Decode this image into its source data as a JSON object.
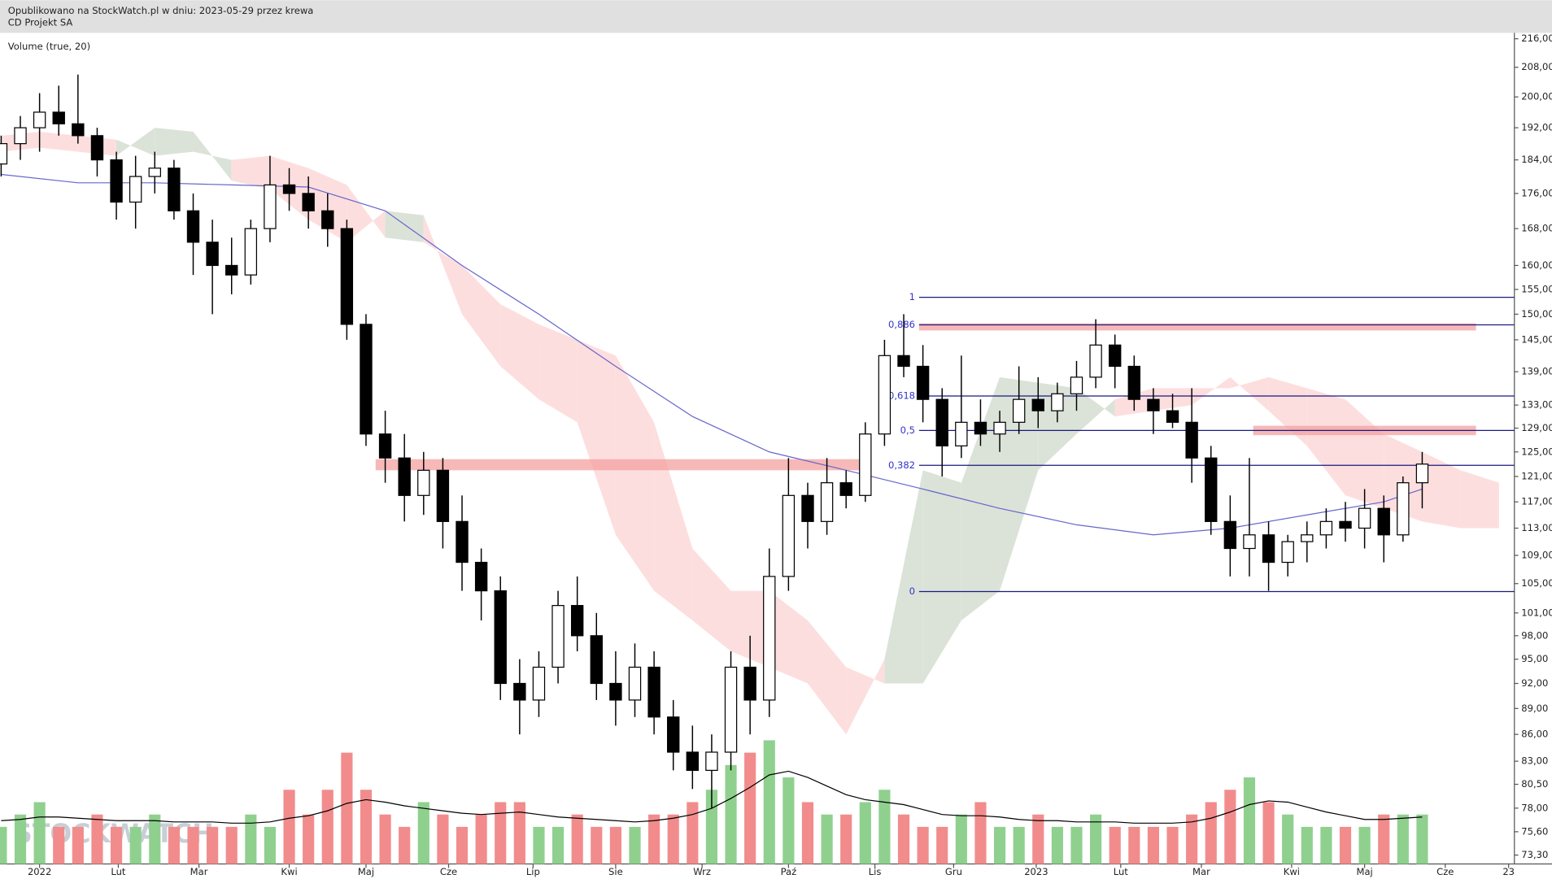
{
  "header": {
    "published": "Opublikowano na StockWatch.pl w dniu: 2023-05-29 przez krewa",
    "instrument": "CD Projekt SA"
  },
  "chart_data": {
    "type": "candlestick",
    "volume_label": "Volume (true, 20)",
    "watermark": "STOCKWATCH",
    "log_scale": true,
    "up_color": "#ffffff",
    "down_color": "#000000",
    "volume_up_color": "#8fd08f",
    "volume_down_color": "#f28c8c",
    "volume_ma_color": "#000000",
    "x": [
      -2,
      -1,
      0,
      1,
      2,
      3,
      4,
      5,
      6,
      7,
      8,
      9,
      10,
      11,
      12,
      13,
      14,
      15,
      16,
      17,
      18,
      19,
      20,
      21,
      22,
      23,
      24,
      25,
      26,
      27,
      28,
      29,
      30,
      31,
      32,
      33,
      34,
      35,
      36,
      37,
      38,
      39,
      40,
      41,
      42,
      43,
      44,
      45,
      46,
      47,
      48,
      49,
      50,
      51,
      52,
      53,
      54,
      55,
      56,
      57,
      58,
      59,
      60,
      61,
      62,
      63,
      64,
      65,
      66,
      67,
      68,
      69,
      70,
      71,
      72
    ],
    "open": [
      183,
      188,
      192,
      196,
      193,
      190,
      184,
      174,
      180,
      182,
      172,
      165,
      160,
      158,
      168,
      178,
      176,
      172,
      168,
      148,
      128,
      124,
      118,
      122,
      114,
      108,
      104,
      92,
      90,
      94,
      102,
      98,
      92,
      90,
      94,
      88,
      84,
      82,
      84,
      94,
      90,
      106,
      118,
      114,
      120,
      118,
      128,
      142,
      140,
      134,
      126,
      130,
      128,
      130,
      134,
      132,
      135,
      138,
      144,
      140,
      134,
      132,
      130,
      124,
      114,
      110,
      112,
      108,
      111,
      112,
      114,
      113,
      116,
      112,
      120
    ],
    "high": [
      190,
      195,
      201,
      203,
      206,
      192,
      186,
      185,
      186,
      184,
      176,
      170,
      166,
      170,
      185,
      182,
      180,
      176,
      170,
      150,
      132,
      128,
      125,
      124,
      118,
      110,
      106,
      95,
      96,
      104,
      106,
      101,
      96,
      97,
      96,
      90,
      87,
      86,
      96,
      98,
      110,
      124,
      120,
      124,
      122,
      130,
      145,
      150,
      144,
      136,
      142,
      134,
      132,
      140,
      138,
      137,
      141,
      149,
      146,
      142,
      136,
      135,
      136,
      126,
      118,
      124,
      114,
      112,
      114,
      116,
      117,
      119,
      118,
      121,
      125
    ],
    "low": [
      180,
      184,
      186,
      190,
      188,
      180,
      170,
      168,
      176,
      170,
      158,
      150,
      154,
      156,
      165,
      172,
      168,
      164,
      145,
      126,
      120,
      114,
      115,
      110,
      104,
      100,
      90,
      86,
      88,
      92,
      96,
      90,
      87,
      88,
      86,
      82,
      80,
      78,
      82,
      86,
      88,
      104,
      110,
      112,
      116,
      117,
      126,
      138,
      130,
      121,
      124,
      126,
      125,
      128,
      129,
      130,
      132,
      136,
      136,
      132,
      128,
      129,
      120,
      112,
      106,
      106,
      104,
      106,
      108,
      110,
      111,
      110,
      108,
      111,
      116
    ],
    "close": [
      188,
      192,
      196,
      193,
      190,
      184,
      174,
      180,
      182,
      172,
      165,
      160,
      158,
      168,
      178,
      176,
      172,
      168,
      148,
      128,
      124,
      118,
      122,
      114,
      108,
      104,
      92,
      90,
      94,
      102,
      98,
      92,
      90,
      94,
      88,
      84,
      82,
      84,
      94,
      90,
      106,
      118,
      114,
      120,
      118,
      128,
      142,
      140,
      134,
      126,
      130,
      128,
      130,
      134,
      132,
      135,
      138,
      144,
      140,
      134,
      132,
      130,
      124,
      114,
      110,
      112,
      108,
      111,
      112,
      114,
      113,
      116,
      112,
      120,
      123
    ],
    "volume": [
      3,
      4,
      5,
      3,
      3,
      4,
      3,
      3,
      4,
      3,
      3,
      3,
      3,
      4,
      3,
      6,
      4,
      6,
      9,
      6,
      4,
      3,
      5,
      4,
      3,
      4,
      5,
      5,
      3,
      3,
      4,
      3,
      3,
      3,
      4,
      4,
      5,
      6,
      8,
      9,
      10,
      7,
      5,
      4,
      4,
      5,
      6,
      4,
      3,
      3,
      4,
      5,
      3,
      3,
      4,
      3,
      3,
      4,
      3,
      3,
      3,
      3,
      4,
      5,
      6,
      7,
      5,
      4,
      3,
      3,
      3,
      3,
      4,
      4,
      4
    ],
    "volume_ma": [
      3.5,
      3.6,
      3.8,
      3.8,
      3.7,
      3.6,
      3.5,
      3.5,
      3.5,
      3.4,
      3.4,
      3.4,
      3.3,
      3.3,
      3.4,
      3.7,
      3.9,
      4.3,
      4.9,
      5.2,
      5.0,
      4.7,
      4.5,
      4.3,
      4.1,
      4.0,
      4.1,
      4.2,
      4.0,
      3.8,
      3.7,
      3.6,
      3.5,
      3.4,
      3.5,
      3.7,
      4.0,
      4.5,
      5.3,
      6.2,
      7.2,
      7.5,
      7.0,
      6.3,
      5.6,
      5.2,
      5.0,
      4.8,
      4.4,
      4.0,
      3.9,
      3.9,
      3.8,
      3.6,
      3.5,
      3.5,
      3.4,
      3.4,
      3.4,
      3.3,
      3.3,
      3.3,
      3.4,
      3.7,
      4.2,
      4.8,
      5.1,
      5.0,
      4.6,
      4.2,
      3.9,
      3.6,
      3.6,
      3.7,
      3.8
    ],
    "sma": {
      "color": "#6666cc",
      "x": [
        -2,
        2,
        6,
        10,
        14,
        18,
        22,
        26,
        30,
        34,
        38,
        42,
        46,
        50,
        54,
        58,
        62,
        66,
        70,
        72
      ],
      "values": [
        180.5,
        178.5,
        178.5,
        178,
        177.5,
        172,
        160,
        150,
        140,
        131,
        125,
        122,
        119,
        116,
        113.5,
        112,
        113,
        115,
        117,
        119
      ]
    },
    "cloud": {
      "up_color": "#dbe3d8",
      "down_color": "#fddede",
      "x": [
        -2,
        0,
        2,
        4,
        6,
        8,
        10,
        12,
        14,
        16,
        18,
        20,
        22,
        24,
        26,
        28,
        30,
        32,
        34,
        36,
        38,
        40,
        42,
        44,
        46,
        48,
        50,
        52,
        54,
        56,
        58,
        60,
        62,
        64,
        66,
        68,
        70,
        72,
        74,
        76
      ],
      "span_a": [
        186,
        187,
        186,
        185,
        192,
        191,
        179,
        177,
        170,
        165,
        172,
        171,
        150,
        140,
        134,
        130,
        112,
        104,
        100,
        96,
        94,
        92,
        86,
        95,
        122,
        120,
        138,
        137,
        136,
        131,
        132,
        133,
        138,
        132,
        126,
        118,
        116,
        114,
        113,
        113
      ],
      "span_b": [
        190,
        191,
        190,
        189,
        185,
        186,
        184,
        185,
        182,
        178,
        166,
        165,
        160,
        152,
        148,
        145,
        142,
        130,
        110,
        104,
        104,
        100,
        94,
        92,
        92,
        100,
        104,
        122,
        128,
        134,
        136,
        136,
        136,
        138,
        136,
        134,
        128,
        125,
        122,
        120
      ]
    },
    "zones": {
      "color": "#f4a0a0",
      "items": [
        {
          "from": 17.5,
          "to": 43.3,
          "low": 122,
          "high": 123.8
        },
        {
          "from": 45.8,
          "to": 74.8,
          "low": 146.8,
          "high": 148.2
        },
        {
          "from": 63.2,
          "to": 74.8,
          "low": 127.8,
          "high": 129.4
        }
      ]
    },
    "fib": {
      "start": 45.8,
      "line_color": "#1a1a80",
      "label_color": "#3333cc",
      "levels": [
        {
          "label": "1",
          "price": 153.4
        },
        {
          "label": "0,886",
          "price": 147.9
        },
        {
          "label": "0,618",
          "price": 134.6
        },
        {
          "label": "0,5",
          "price": 128.6
        },
        {
          "label": "0,382",
          "price": 122.8
        },
        {
          "label": "0",
          "price": 103.9
        }
      ]
    },
    "xlim": [
      -2.06,
      76.8
    ],
    "xticks": [
      {
        "value": 0,
        "label": "2022"
      },
      {
        "value": 4.1,
        "label": "Lut"
      },
      {
        "value": 8.3,
        "label": "Mar"
      },
      {
        "value": 13,
        "label": "Kwi"
      },
      {
        "value": 17,
        "label": "Maj"
      },
      {
        "value": 21.3,
        "label": "Cze"
      },
      {
        "value": 25.7,
        "label": "Lip"
      },
      {
        "value": 30,
        "label": "Sie"
      },
      {
        "value": 34.5,
        "label": "Wrz"
      },
      {
        "value": 39,
        "label": "Paź"
      },
      {
        "value": 43.5,
        "label": "Lis"
      },
      {
        "value": 47.6,
        "label": "Gru"
      },
      {
        "value": 51.9,
        "label": "2023"
      },
      {
        "value": 56.3,
        "label": "Lut"
      },
      {
        "value": 60.5,
        "label": "Mar"
      },
      {
        "value": 65.2,
        "label": "Kwi"
      },
      {
        "value": 69,
        "label": "Maj"
      },
      {
        "value": 73.2,
        "label": "Cze"
      },
      {
        "value": 76.5,
        "label": "23"
      }
    ],
    "ylim": [
      73.3,
      216
    ],
    "yticks": [
      {
        "value": 216,
        "label": "216,00"
      },
      {
        "value": 208,
        "label": "208,00"
      },
      {
        "value": 200,
        "label": "200,00"
      },
      {
        "value": 192,
        "label": "192,00"
      },
      {
        "value": 184,
        "label": "184,00"
      },
      {
        "value": 176,
        "label": "176,00"
      },
      {
        "value": 168,
        "label": "168,00"
      },
      {
        "value": 160,
        "label": "160,00"
      },
      {
        "value": 155,
        "label": "155,00"
      },
      {
        "value": 150,
        "label": "150,00"
      },
      {
        "value": 145,
        "label": "145,00"
      },
      {
        "value": 139,
        "label": "139,00"
      },
      {
        "value": 133,
        "label": "133,00"
      },
      {
        "value": 129,
        "label": "129,00"
      },
      {
        "value": 125,
        "label": "125,00"
      },
      {
        "value": 121,
        "label": "121,00"
      },
      {
        "value": 117,
        "label": "117,00"
      },
      {
        "value": 113,
        "label": "113,00"
      },
      {
        "value": 109,
        "label": "109,00"
      },
      {
        "value": 105,
        "label": "105,00"
      },
      {
        "value": 101,
        "label": "101,00"
      },
      {
        "value": 98,
        "label": "98,00"
      },
      {
        "value": 95,
        "label": "95,00"
      },
      {
        "value": 92,
        "label": "92,00"
      },
      {
        "value": 89,
        "label": "89,00"
      },
      {
        "value": 86,
        "label": "86,00"
      },
      {
        "value": 83,
        "label": "83,00"
      },
      {
        "value": 80.5,
        "label": "80,50"
      },
      {
        "value": 78,
        "label": "78,00"
      },
      {
        "value": 75.6,
        "label": "75,60"
      },
      {
        "value": 73.3,
        "label": "73,30"
      }
    ]
  }
}
